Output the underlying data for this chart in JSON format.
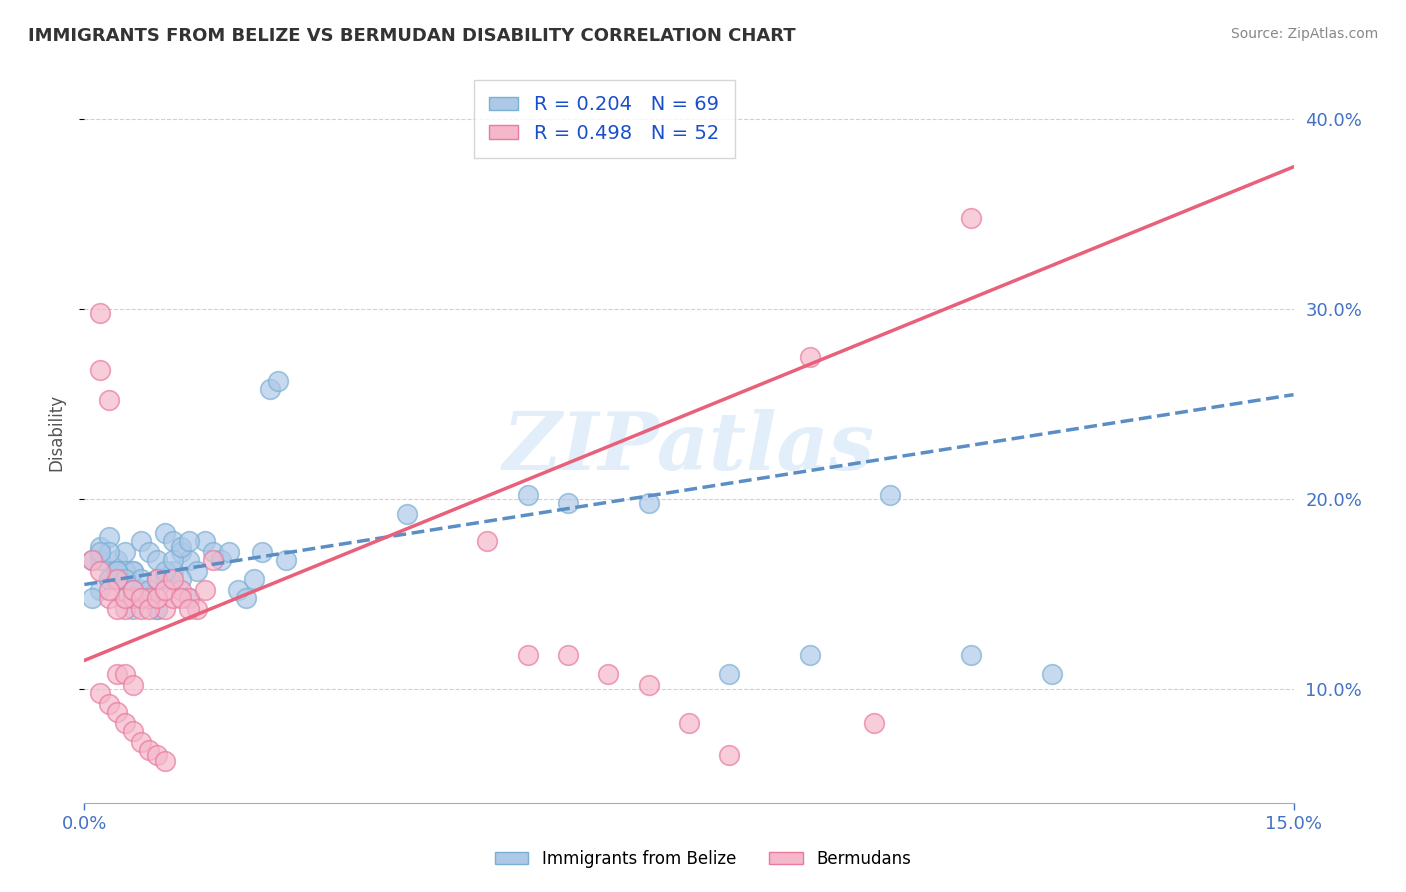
{
  "title": "IMMIGRANTS FROM BELIZE VS BERMUDAN DISABILITY CORRELATION CHART",
  "source_text": "Source: ZipAtlas.com",
  "ylabel": "Disability",
  "series": [
    {
      "name": "Immigrants from Belize",
      "R": 0.204,
      "N": 69,
      "marker_face": "#aec9e8",
      "marker_edge": "#7aafd4",
      "line_color": "#5b8ec4",
      "line_style": "--"
    },
    {
      "name": "Bermudans",
      "R": 0.498,
      "N": 52,
      "marker_face": "#f5b8cb",
      "marker_edge": "#e87a9f",
      "line_color": "#e8607a",
      "line_style": "-"
    }
  ],
  "xlim": [
    0.0,
    0.15
  ],
  "ylim": [
    0.04,
    0.43
  ],
  "yticks_right": [
    0.1,
    0.2,
    0.3,
    0.4
  ],
  "ytick_labels_right": [
    "10.0%",
    "20.0%",
    "30.0%",
    "40.0%"
  ],
  "watermark": "ZIPatlas",
  "background_color": "#ffffff",
  "grid_color": "#cccccc",
  "belize_x": [
    0.002,
    0.003,
    0.004,
    0.005,
    0.006,
    0.007,
    0.008,
    0.009,
    0.01,
    0.011,
    0.012,
    0.013,
    0.014,
    0.015,
    0.016,
    0.017,
    0.018,
    0.019,
    0.02,
    0.021,
    0.022,
    0.023,
    0.024,
    0.025,
    0.003,
    0.004,
    0.005,
    0.006,
    0.007,
    0.008,
    0.009,
    0.01,
    0.011,
    0.012,
    0.013,
    0.002,
    0.003,
    0.004,
    0.005,
    0.006,
    0.007,
    0.008,
    0.009,
    0.04,
    0.055,
    0.06,
    0.07,
    0.08,
    0.09,
    0.1,
    0.11,
    0.12,
    0.001,
    0.002,
    0.003,
    0.004,
    0.002,
    0.001,
    0.003,
    0.004,
    0.005,
    0.006,
    0.007,
    0.008,
    0.009,
    0.01,
    0.011,
    0.012,
    0.013
  ],
  "belize_y": [
    0.175,
    0.18,
    0.168,
    0.172,
    0.162,
    0.178,
    0.172,
    0.168,
    0.182,
    0.178,
    0.172,
    0.168,
    0.162,
    0.178,
    0.172,
    0.168,
    0.172,
    0.152,
    0.148,
    0.158,
    0.172,
    0.258,
    0.262,
    0.168,
    0.158,
    0.162,
    0.148,
    0.142,
    0.152,
    0.148,
    0.142,
    0.158,
    0.162,
    0.158,
    0.148,
    0.168,
    0.172,
    0.158,
    0.162,
    0.162,
    0.158,
    0.148,
    0.142,
    0.192,
    0.202,
    0.198,
    0.198,
    0.108,
    0.118,
    0.202,
    0.118,
    0.108,
    0.168,
    0.172,
    0.158,
    0.162,
    0.152,
    0.148,
    0.158,
    0.162,
    0.158,
    0.152,
    0.148,
    0.152,
    0.158,
    0.162,
    0.168,
    0.175,
    0.178
  ],
  "bermuda_x": [
    0.002,
    0.003,
    0.004,
    0.005,
    0.006,
    0.007,
    0.008,
    0.009,
    0.01,
    0.011,
    0.012,
    0.013,
    0.014,
    0.015,
    0.016,
    0.002,
    0.003,
    0.004,
    0.005,
    0.006,
    0.007,
    0.008,
    0.009,
    0.01,
    0.011,
    0.012,
    0.013,
    0.001,
    0.002,
    0.003,
    0.004,
    0.005,
    0.006,
    0.002,
    0.003,
    0.004,
    0.005,
    0.006,
    0.007,
    0.008,
    0.009,
    0.01,
    0.05,
    0.055,
    0.06,
    0.065,
    0.07,
    0.075,
    0.08,
    0.09,
    0.098,
    0.11
  ],
  "bermuda_y": [
    0.298,
    0.252,
    0.158,
    0.142,
    0.148,
    0.142,
    0.148,
    0.158,
    0.142,
    0.148,
    0.152,
    0.148,
    0.142,
    0.152,
    0.168,
    0.268,
    0.148,
    0.142,
    0.148,
    0.152,
    0.148,
    0.142,
    0.148,
    0.152,
    0.158,
    0.148,
    0.142,
    0.168,
    0.162,
    0.152,
    0.108,
    0.108,
    0.102,
    0.098,
    0.092,
    0.088,
    0.082,
    0.078,
    0.072,
    0.068,
    0.065,
    0.062,
    0.178,
    0.118,
    0.118,
    0.108,
    0.102,
    0.082,
    0.065,
    0.275,
    0.082,
    0.348
  ],
  "belize_trend_x": [
    0.0,
    0.15
  ],
  "belize_trend_y": [
    0.155,
    0.255
  ],
  "bermuda_trend_x": [
    0.0,
    0.15
  ],
  "bermuda_trend_y": [
    0.115,
    0.375
  ]
}
